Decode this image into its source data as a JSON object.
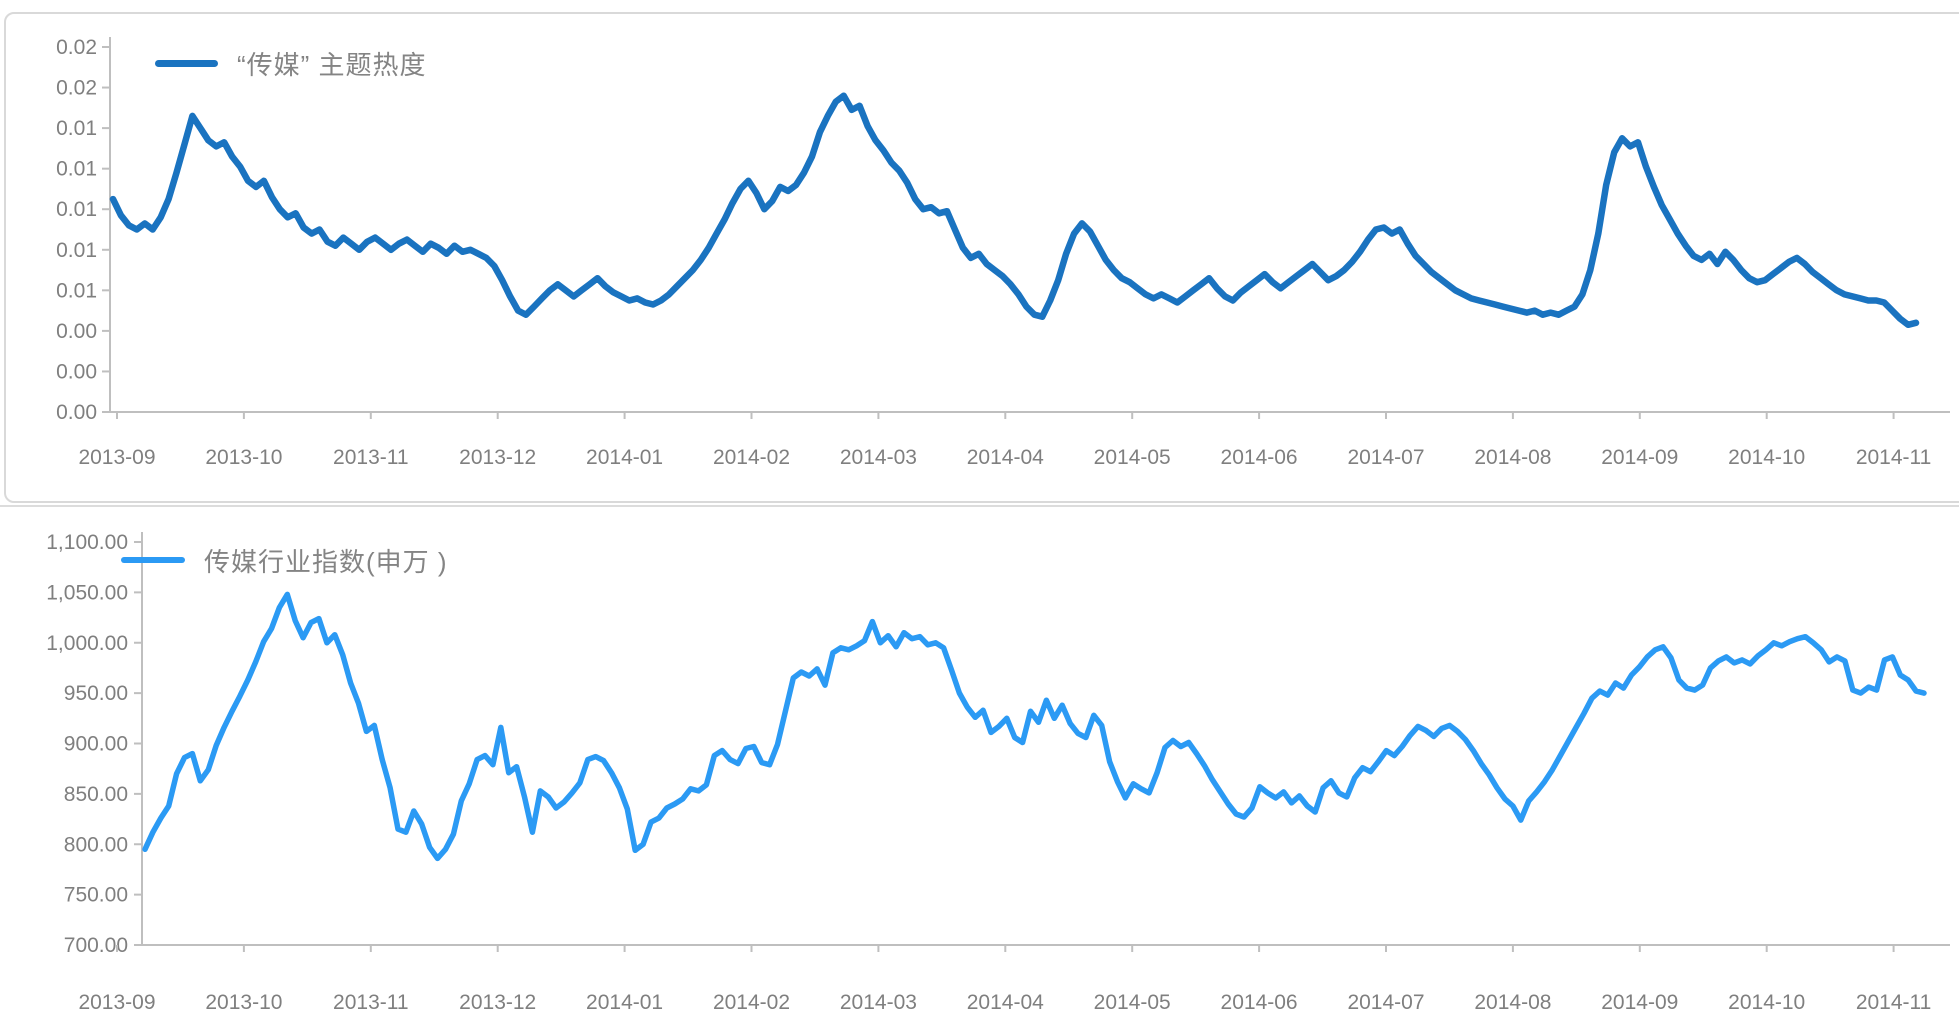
{
  "page": {
    "background": "#FFFFFF"
  },
  "chart_data": [
    {
      "type": "line",
      "legend": "“传媒” 主题热度",
      "line_color": "#1A73C0",
      "axis_color": "#BFBFBF",
      "tick_label_color": "#7F7F7F",
      "grid": "off",
      "legend_position": "top-left-inside",
      "xlabel": "",
      "ylabel": "",
      "ylim": [
        0,
        0.018
      ],
      "y_tick_step": 0.002,
      "y_tick_labels": [
        "0.02",
        "0.02",
        "0.01",
        "0.01",
        "0.01",
        "0.01",
        "0.01",
        "0.00",
        "0.00",
        "0.00"
      ],
      "x_tick_labels": [
        "2013-09",
        "2013-10",
        "2013-11",
        "2013-12",
        "2014-01",
        "2014-02",
        "2014-03",
        "2014-04",
        "2014-05",
        "2014-06",
        "2014-07",
        "2014-08",
        "2014-09",
        "2014-10",
        "2014-11"
      ],
      "values_scale": 0.0001,
      "values": [
        105,
        97,
        92,
        90,
        93,
        90,
        96,
        105,
        118,
        132,
        146,
        140,
        134,
        131,
        133,
        126,
        121,
        114,
        111,
        114,
        106,
        100,
        96,
        98,
        91,
        88,
        90,
        84,
        82,
        86,
        83,
        80,
        84,
        86,
        83,
        80,
        83,
        85,
        82,
        79,
        83,
        81,
        78,
        82,
        79,
        80,
        78,
        76,
        72,
        65,
        57,
        50,
        48,
        52,
        56,
        60,
        63,
        60,
        57,
        60,
        63,
        66,
        62,
        59,
        57,
        55,
        56,
        54,
        53,
        55,
        58,
        62,
        66,
        70,
        75,
        81,
        88,
        95,
        103,
        110,
        114,
        108,
        100,
        104,
        111,
        109,
        112,
        118,
        126,
        138,
        146,
        153,
        156,
        149,
        151,
        141,
        134,
        129,
        123,
        119,
        113,
        105,
        100,
        101,
        98,
        99,
        90,
        81,
        76,
        78,
        73,
        70,
        67,
        63,
        58,
        52,
        48,
        47,
        55,
        65,
        78,
        88,
        93,
        89,
        82,
        75,
        70,
        66,
        64,
        61,
        58,
        56,
        58,
        56,
        54,
        57,
        60,
        63,
        66,
        61,
        57,
        55,
        59,
        62,
        65,
        68,
        64,
        61,
        64,
        67,
        70,
        73,
        69,
        65,
        67,
        70,
        74,
        79,
        85,
        90,
        91,
        88,
        90,
        83,
        77,
        73,
        69,
        66,
        63,
        60,
        58,
        56,
        55,
        54,
        53,
        52,
        51,
        50,
        49,
        50,
        48,
        49,
        48,
        50,
        52,
        58,
        70,
        88,
        112,
        128,
        135,
        131,
        133,
        121,
        111,
        102,
        95,
        88,
        82,
        77,
        75,
        78,
        73,
        79,
        75,
        70,
        66,
        64,
        65,
        68,
        71,
        74,
        76,
        73,
        69,
        66,
        63,
        60,
        58,
        57,
        56,
        55,
        55,
        54,
        50,
        46,
        43,
        44
      ]
    },
    {
      "type": "line",
      "legend": "传媒行业指数(申万 )",
      "line_color": "#2B9AF4",
      "axis_color": "#BFBFBF",
      "tick_label_color": "#7F7F7F",
      "grid": "off",
      "legend_position": "top-left-inside",
      "xlabel": "",
      "ylabel": "",
      "ylim": [
        700,
        1100
      ],
      "y_tick_step": 50,
      "y_tick_labels": [
        "1,100.00",
        "1,050.00",
        "1,000.00",
        "950.00",
        "900.00",
        "850.00",
        "800.00",
        "750.00",
        "700.00"
      ],
      "x_tick_labels": [
        "2013-09",
        "2013-10",
        "2013-11",
        "2013-12",
        "2014-01",
        "2014-02",
        "2014-03",
        "2014-04",
        "2014-05",
        "2014-06",
        "2014-07",
        "2014-08",
        "2014-09",
        "2014-10",
        "2014-11"
      ],
      "values_scale": 1,
      "values": [
        795,
        812,
        826,
        838,
        870,
        886,
        890,
        863,
        874,
        898,
        916,
        932,
        947,
        963,
        981,
        1001,
        1014,
        1035,
        1048,
        1022,
        1005,
        1020,
        1024,
        1000,
        1008,
        988,
        960,
        940,
        912,
        918,
        884,
        856,
        815,
        812,
        833,
        820,
        797,
        786,
        795,
        810,
        843,
        860,
        884,
        888,
        879,
        916,
        871,
        877,
        847,
        812,
        853,
        847,
        836,
        842,
        851,
        861,
        884,
        887,
        883,
        871,
        856,
        835,
        794,
        800,
        822,
        826,
        836,
        840,
        845,
        855,
        853,
        859,
        888,
        893,
        884,
        880,
        895,
        897,
        881,
        879,
        899,
        932,
        965,
        971,
        967,
        974,
        958,
        990,
        995,
        993,
        997,
        1002,
        1021,
        1000,
        1007,
        996,
        1010,
        1004,
        1006,
        998,
        1000,
        995,
        973,
        950,
        936,
        926,
        933,
        911,
        917,
        925,
        906,
        901,
        932,
        921,
        943,
        925,
        938,
        920,
        910,
        906,
        928,
        918,
        882,
        862,
        846,
        860,
        855,
        851,
        871,
        896,
        903,
        897,
        901,
        890,
        878,
        864,
        852,
        840,
        830,
        827,
        836,
        857,
        851,
        846,
        852,
        841,
        848,
        838,
        832,
        856,
        863,
        851,
        847,
        866,
        876,
        872,
        882,
        893,
        888,
        897,
        908,
        917,
        913,
        907,
        915,
        918,
        912,
        904,
        893,
        880,
        869,
        856,
        845,
        838,
        824,
        843,
        852,
        862,
        874,
        888,
        902,
        916,
        930,
        945,
        952,
        948,
        960,
        955,
        968,
        976,
        986,
        993,
        996,
        985,
        963,
        955,
        953,
        958,
        975,
        982,
        986,
        980,
        983,
        979,
        987,
        993,
        1000,
        997,
        1001,
        1004,
        1006,
        1000,
        993,
        981,
        986,
        982,
        953,
        950,
        956,
        953,
        983,
        986,
        968,
        963,
        952,
        950
      ]
    }
  ]
}
